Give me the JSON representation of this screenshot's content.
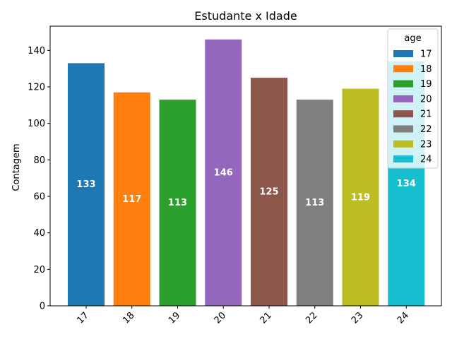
{
  "chart_data": {
    "type": "bar",
    "title": "Estudante x Idade",
    "xlabel": "",
    "ylabel": "Contagem",
    "categories": [
      "17",
      "18",
      "19",
      "20",
      "21",
      "22",
      "23",
      "24"
    ],
    "values": [
      133,
      117,
      113,
      146,
      125,
      113,
      119,
      134
    ],
    "colors": [
      "#1f77b4",
      "#ff7f0e",
      "#2ca02c",
      "#9467bd",
      "#8c564b",
      "#7f7f7f",
      "#bcbd22",
      "#17becf"
    ],
    "ylim": [
      0,
      153.3
    ],
    "yticks": [
      0,
      20,
      40,
      60,
      80,
      100,
      120,
      140
    ],
    "grid": false,
    "legend": {
      "title": "age",
      "placement": "top-right",
      "entries": [
        "17",
        "18",
        "19",
        "20",
        "21",
        "22",
        "23",
        "24"
      ]
    },
    "data_labels": [
      "133",
      "117",
      "113",
      "146",
      "125",
      "113",
      "119",
      "134"
    ]
  }
}
